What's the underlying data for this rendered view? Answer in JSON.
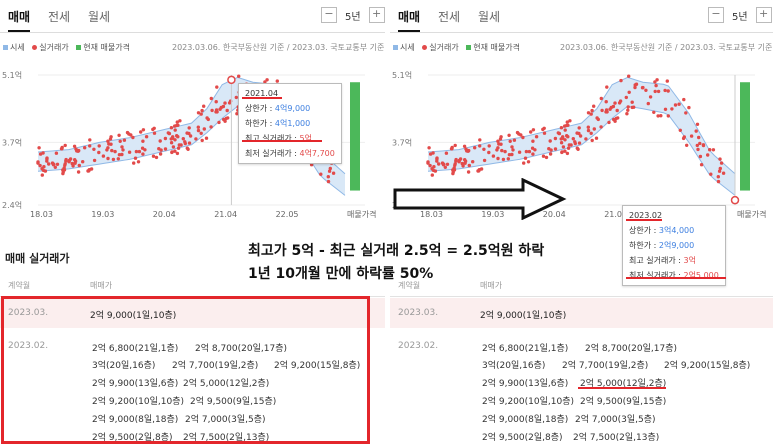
{
  "tabs": [
    "매매",
    "전세",
    "월세"
  ],
  "period": {
    "minus": "−",
    "label": "5년",
    "plus": "+"
  },
  "legend": {
    "price": "시세",
    "deals": "실거래가",
    "listing": "현재 매물가격"
  },
  "source": "2023.03.06. 한국부동산원 기준 / 2023.03. 국토교통부 기준",
  "colors": {
    "band": "#d9e8f7",
    "band_line": "#8fb8e6",
    "deal": "#e24a4a",
    "listing": "#4cb85a",
    "accent_red": "#e3262b",
    "blue": "#3d7fe0"
  },
  "chart_data": [
    {
      "type": "scatter",
      "y_ticks": [
        "5.1억",
        "3.7억",
        "2.4억"
      ],
      "x_ticks": [
        "18.03",
        "19.03",
        "20.04",
        "21.04",
        "22.05",
        "매물가격"
      ],
      "ylim": [
        2.4,
        5.1
      ],
      "price_band": {
        "x": [
          0,
          0.1,
          0.2,
          0.3,
          0.4,
          0.5,
          0.55,
          0.6,
          0.65,
          0.7,
          0.78,
          0.85,
          0.92,
          1.0
        ],
        "upper": [
          3.5,
          3.55,
          3.7,
          3.8,
          3.95,
          4.1,
          4.4,
          4.9,
          5.05,
          4.95,
          4.9,
          4.3,
          3.5,
          3.05
        ],
        "lower": [
          3.1,
          3.15,
          3.25,
          3.35,
          3.5,
          3.65,
          3.9,
          4.2,
          4.45,
          4.4,
          4.3,
          3.7,
          3.0,
          2.6
        ]
      },
      "highlight": {
        "x": 0.63,
        "y": 5.0
      },
      "tooltip": {
        "date": "2021.04",
        "upper_label": "상한가 : ",
        "upper_value": "4억9,000",
        "lower_label": "하한가 : ",
        "lower_value": "4억1,000",
        "max_label": "최고 실거래가 : ",
        "max_value": "5억",
        "min_label": "최저 실거래가 : ",
        "min_value": "4억7,700"
      }
    },
    {
      "type": "scatter",
      "y_ticks": [
        "5.1억",
        "3.7억",
        "2.4억"
      ],
      "x_ticks": [
        "18.03",
        "19.03",
        "20.04",
        "21.04",
        "22.05",
        "매물가격"
      ],
      "ylim": [
        2.4,
        5.1
      ],
      "highlight": {
        "x": 1.0,
        "y": 2.5
      },
      "tooltip": {
        "date": "2023.02",
        "upper_label": "상한가 : ",
        "upper_value": "3억4,000",
        "lower_label": "하한가 : ",
        "lower_value": "2억9,000",
        "max_label": "최고 실거래가 : ",
        "max_value": "3억",
        "min_label": "최저 실거래가 : ",
        "min_value": "2억5,000"
      }
    }
  ],
  "table": {
    "title": "매매 실거래가",
    "col_contract": "계약월",
    "col_price": "매매가",
    "row1": {
      "month": "2023.03.",
      "deal": "2억 9,000(1일,10층)"
    },
    "row2_month": "2023.02.",
    "deals": [
      "2억 6,800(21일,1층)",
      "2억 8,700(20일,17층)",
      "3억(20일,16층)",
      "2억 7,700(19일,2층)",
      "2억 9,200(15일,8층)",
      "2억 9,900(13일,6층)",
      "2억 5,000(12일,2층)",
      "2억 9,200(10일,10층)",
      "2억 9,500(9일,15층)",
      "2억 9,000(8일,18층)",
      "2억 7,000(3일,5층)",
      "2억 9,500(2일,8층)",
      "2억 7,500(2일,13층)"
    ]
  },
  "annotation": {
    "line1": "최고가 5억 - 최근 실거래 2.5억 = 2.5억원 하락",
    "line2": "1년 10개월 만에 하락률 50%"
  }
}
